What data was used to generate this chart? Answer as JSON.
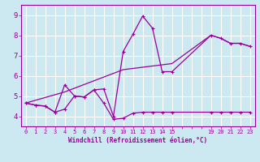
{
  "xlabel": "Windchill (Refroidissement éolien,°C)",
  "bg_color": "#cce8f0",
  "line_color": "#990099",
  "grid_color": "#ffffff",
  "xlim": [
    -0.5,
    23.5
  ],
  "ylim": [
    3.5,
    9.5
  ],
  "xticks": [
    0,
    1,
    2,
    3,
    4,
    5,
    6,
    7,
    8,
    9,
    10,
    11,
    12,
    13,
    14,
    15,
    19,
    20,
    21,
    22,
    23
  ],
  "yticks": [
    4,
    5,
    6,
    7,
    8,
    9
  ],
  "line1_x": [
    0,
    1,
    2,
    3,
    4,
    5,
    6,
    7,
    8,
    9,
    10,
    11,
    12,
    13,
    14,
    15,
    19,
    20,
    21,
    22,
    23
  ],
  "line1_y": [
    4.65,
    4.55,
    4.5,
    4.2,
    4.35,
    5.0,
    4.95,
    5.3,
    4.65,
    3.85,
    3.9,
    4.15,
    4.2,
    4.2,
    4.2,
    4.2,
    4.2,
    4.2,
    4.2,
    4.2,
    4.2
  ],
  "line2_x": [
    0,
    1,
    2,
    3,
    4,
    5,
    6,
    7,
    8,
    9,
    10,
    11,
    12,
    13,
    14,
    15,
    19,
    20,
    21,
    22,
    23
  ],
  "line2_y": [
    4.65,
    4.55,
    4.5,
    4.2,
    5.55,
    5.0,
    4.95,
    5.3,
    5.35,
    4.0,
    7.2,
    8.05,
    8.95,
    8.35,
    6.2,
    6.2,
    8.0,
    7.85,
    7.6,
    7.6,
    7.45
  ],
  "line3_x": [
    0,
    4,
    10,
    15,
    19,
    20,
    21,
    22,
    23
  ],
  "line3_y": [
    4.65,
    5.2,
    6.3,
    6.6,
    8.0,
    7.85,
    7.6,
    7.6,
    7.45
  ]
}
